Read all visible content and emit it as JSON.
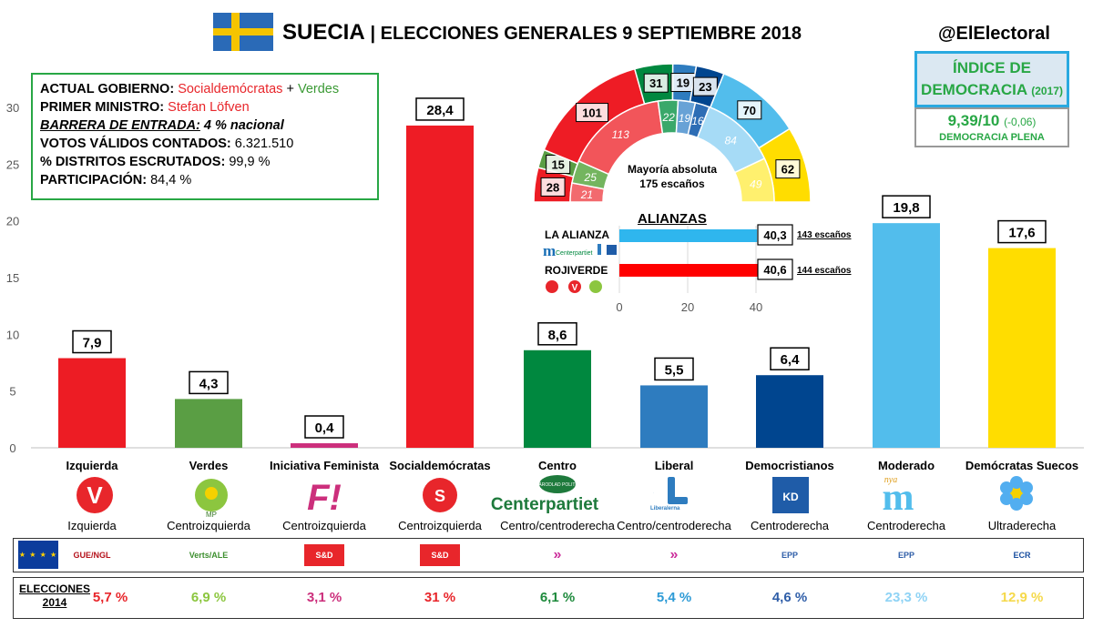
{
  "header": {
    "country": "SUECIA",
    "title": "| ELECCIONES GENERALES 9 SEPTIEMBRE 2018",
    "handle": "@ElElectoral"
  },
  "democracy": {
    "title_line1": "ÍNDICE DE",
    "title_line2": "DEMOCRACIA",
    "year": "(2017)",
    "score": "9,39/10",
    "change": "(-0,06)",
    "label": "DEMOCRACIA PLENA"
  },
  "info": {
    "gov_label": "ACTUAL GOBIERNO:",
    "gov_party1": "Socialdemócratas",
    "gov_plus": "+",
    "gov_party2": "Verdes",
    "pm_label": "PRIMER MINISTRO:",
    "pm_name": "Stefan Löfven",
    "barrier": "BARRERA DE ENTRADA:",
    "barrier_value": "4 % nacional",
    "votes_label": "VOTOS VÁLIDOS CONTADOS:",
    "votes_value": "6.321.510",
    "districts_label": "% DISTRITOS ESCRUTADOS:",
    "districts_value": "99,9 %",
    "turnout_label": "PARTICIPACIÓN:",
    "turnout_value": "84,4 %"
  },
  "chart_data": {
    "type": "bar",
    "categories": [
      "Izquierda",
      "Verdes",
      "Iniciativa Feminista",
      "Socialdemócratas",
      "Centro",
      "Liberal",
      "Democristianos",
      "Moderado",
      "Demócratas Suecos"
    ],
    "values": [
      7.9,
      4.3,
      0.4,
      28.4,
      8.6,
      5.5,
      6.4,
      19.8,
      17.6
    ],
    "value_labels": [
      "7,9",
      "4,3",
      "0,4",
      "28,4",
      "8,6",
      "5,5",
      "6,4",
      "19,8",
      "17,6"
    ],
    "colors": [
      "#ed1c24",
      "#5a9e44",
      "#cc2f7c",
      "#ee1c25",
      "#00883f",
      "#2e7cbf",
      "#00458f",
      "#52bdec",
      "#ffdd00"
    ],
    "ylim": [
      0,
      30
    ],
    "yticks": [
      0,
      5,
      10,
      15,
      20,
      25,
      30
    ],
    "ideology": [
      "Izquierda",
      "Centroizquierda",
      "Centroizquierda",
      "Centroizquierda",
      "Centro/centroderecha",
      "Centro/centroderecha",
      "Centroderecha",
      "Centroderecha",
      "Ultraderecha"
    ],
    "elections_2014": [
      "5,7 %",
      "6,9 %",
      "3,1 %",
      "31 %",
      "6,1 %",
      "5,4 %",
      "4,6 %",
      "23,3 %",
      "12,9 %"
    ],
    "e14_colors": [
      "#e8262b",
      "#8cc63f",
      "#cc2f7c",
      "#e8262b",
      "#1e8a3c",
      "#2e9bd6",
      "#2f5ea8",
      "#8fd3f5",
      "#f5d94a"
    ]
  },
  "hemicycle": {
    "majority_line1": "Mayoría absoluta",
    "majority_line2": "175 escaños",
    "result_2018": [
      28,
      15,
      101,
      31,
      19,
      23,
      70,
      62
    ],
    "result_2014": [
      21,
      25,
      113,
      22,
      19,
      16,
      84,
      49
    ],
    "colors": [
      "#ed1c24",
      "#5a9e44",
      "#ee1c25",
      "#00883f",
      "#2e7cbf",
      "#00458f",
      "#52bdec",
      "#ffdd00"
    ],
    "light_colors": [
      "#f26a6e",
      "#74b55f",
      "#f2555a",
      "#3aa86a",
      "#68a2d6",
      "#2d6db5",
      "#a6dbf6",
      "#fff06e"
    ]
  },
  "alliances": {
    "title": "ALIANZAS",
    "items": [
      {
        "name": "LA ALIANZA",
        "value": 40.3,
        "label": "40,3",
        "seats": "143 escaños",
        "color": "#2fb6ee"
      },
      {
        "name": "ROJIVERDE",
        "value": 40.6,
        "label": "40,6",
        "seats": "144 escaños",
        "color": "#ff0000"
      }
    ],
    "ticks": [
      0,
      20,
      40
    ],
    "xlim": [
      0,
      40
    ]
  },
  "eu_groups": [
    "GUE/NGL",
    "Verts/ALE",
    "S&D",
    "S&D",
    "ALDE",
    "ALDE",
    "EPP",
    "EPP",
    "ECR"
  ],
  "e14_label_line1": "ELECCIONES",
  "e14_label_line2": "2014",
  "logos": [
    "V",
    "MP",
    "F!",
    "S",
    "Centerpartiet",
    "L",
    "KD",
    "m",
    "SD"
  ],
  "logo_subtexts": {
    "centro": "NÄRODLAD POLITIK",
    "liberal": "Liberalerna",
    "moderado": "nya"
  }
}
